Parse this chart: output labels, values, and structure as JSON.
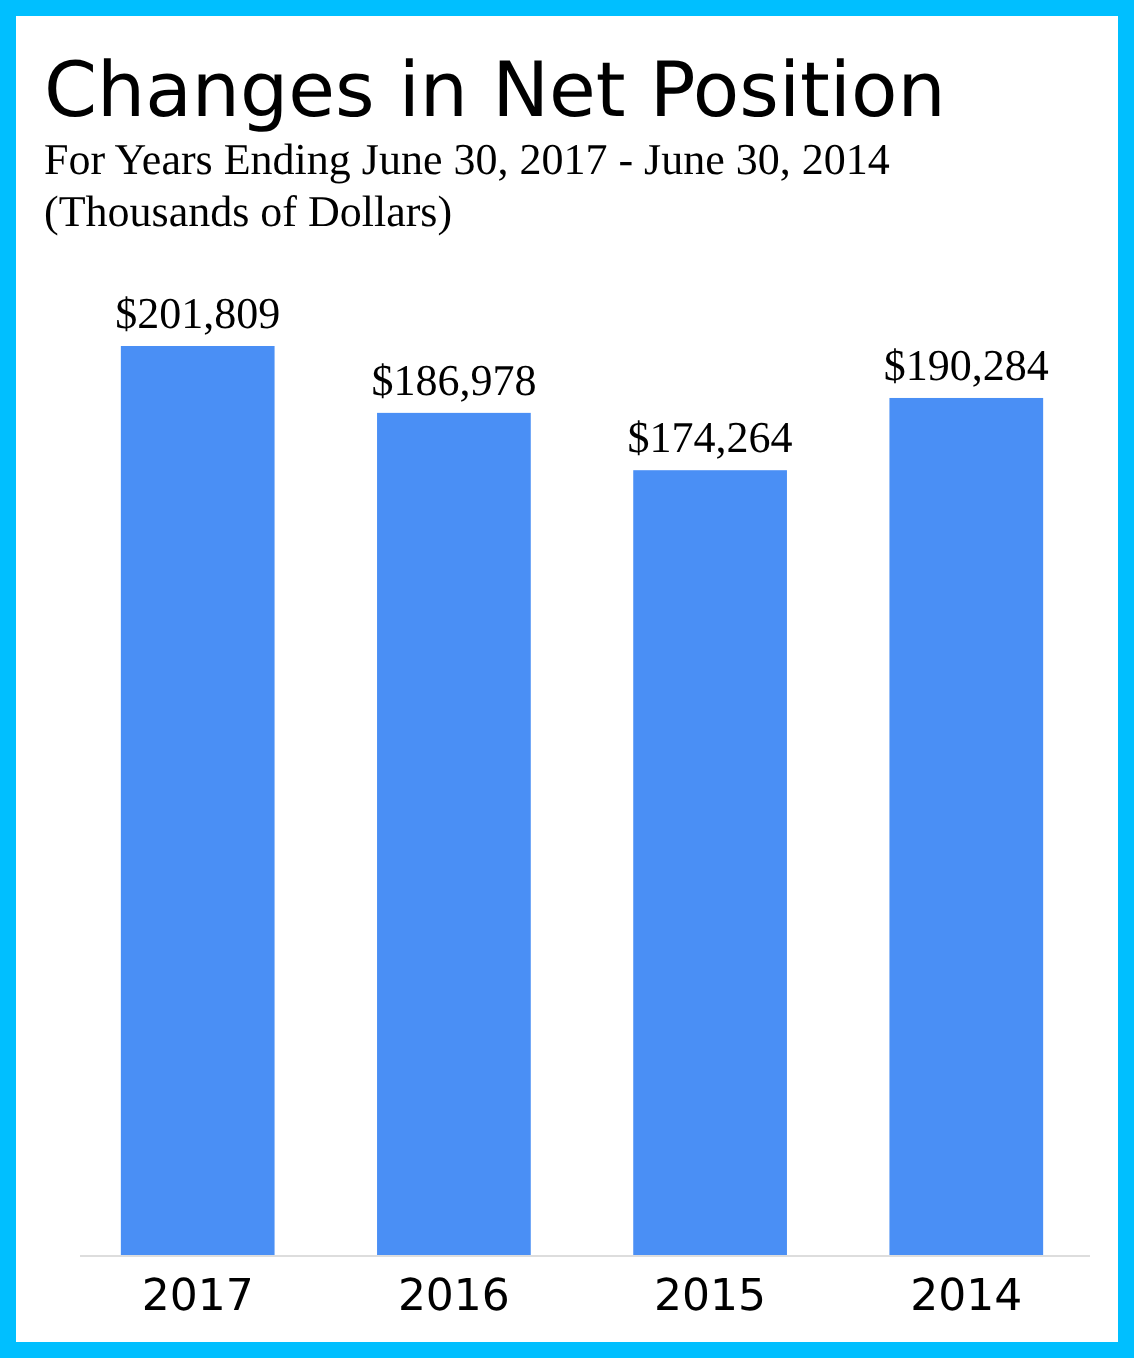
{
  "chart_data": {
    "type": "bar",
    "title": "Changes in Net Position",
    "subtitle": "For Years Ending June 30, 2017 - June 30, 2014\n(Thousands of Dollars)",
    "categories": [
      "2017",
      "2016",
      "2015",
      "2014"
    ],
    "values": [
      201809,
      186978,
      174264,
      190284
    ],
    "value_labels": [
      "$201,809",
      "$186,978",
      "$174,264",
      "$190,284"
    ],
    "color": "#4a8ff5"
  }
}
